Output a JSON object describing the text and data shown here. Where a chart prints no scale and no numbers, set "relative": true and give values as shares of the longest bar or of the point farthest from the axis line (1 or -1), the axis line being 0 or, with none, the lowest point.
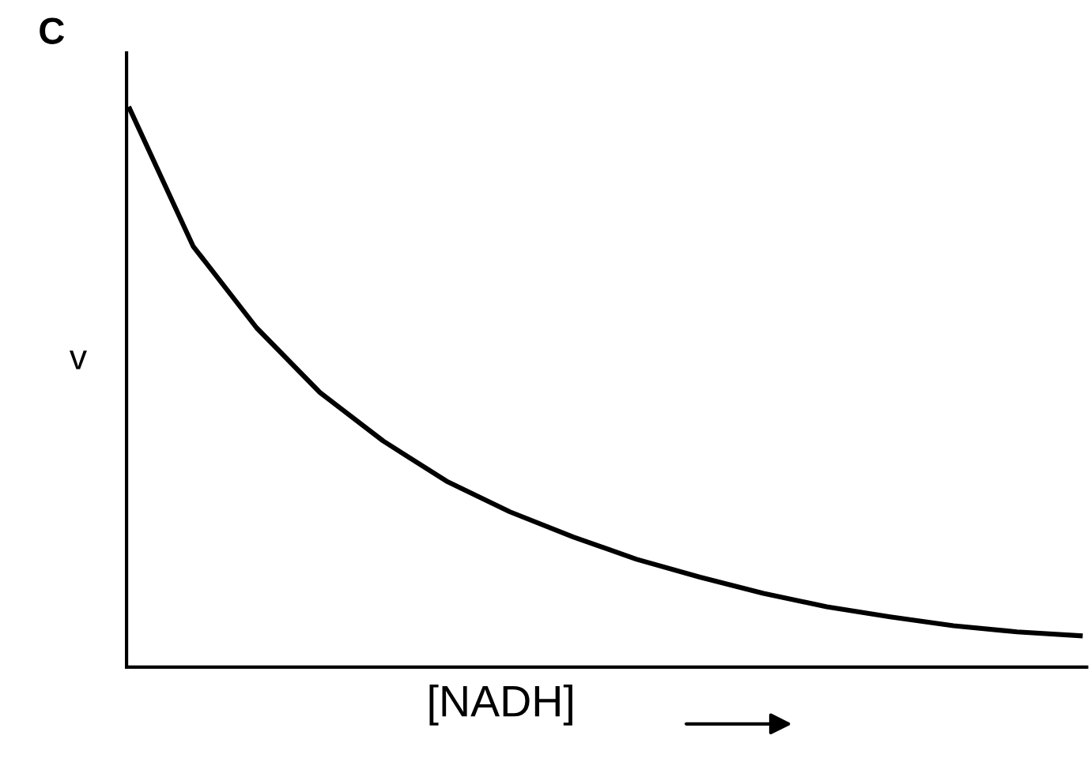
{
  "chart_data": {
    "type": "line",
    "title": "C",
    "xlabel": "[NADH]",
    "ylabel": "v",
    "relative": true,
    "categories": [
      null,
      null,
      null,
      null,
      null,
      null,
      null,
      null,
      null,
      null,
      null,
      null,
      null,
      null,
      null,
      null
    ],
    "series": [
      {
        "color": "#000000",
        "values": [
          1.0,
          0.754,
          0.608,
          0.492,
          0.405,
          0.333,
          0.278,
          0.233,
          0.193,
          0.161,
          0.132,
          0.108,
          0.09,
          0.074,
          0.063,
          0.056
        ]
      }
    ],
    "marker": "none",
    "line_style": "solid",
    "grid": false,
    "legend": false,
    "tick_labels": false
  }
}
